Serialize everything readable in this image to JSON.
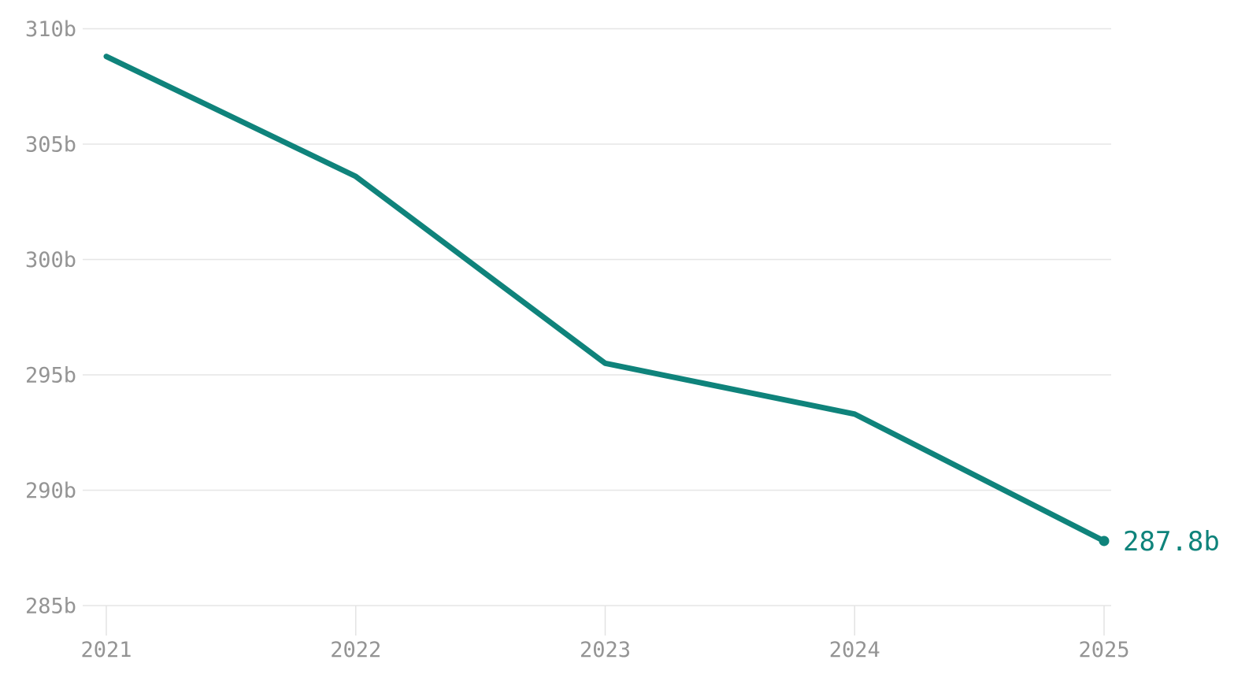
{
  "page": {
    "background": "#ffffff"
  },
  "colors": {
    "line": "#0F837B",
    "end_dot": "#0F837B",
    "end_label": "#0F837B",
    "axis_label": "#949494",
    "gridline": "#E6E6E6",
    "tick": "#E3E3E3"
  },
  "chart_data": {
    "type": "line",
    "title": "",
    "categories": [
      "2021",
      "2022",
      "2023",
      "2024",
      "2025"
    ],
    "series": [
      {
        "name": "value",
        "values": [
          308.8,
          303.6,
          295.5,
          293.3,
          287.8
        ]
      }
    ],
    "end_label": "287.8b",
    "unit_suffix": "b",
    "ylim": [
      285,
      310
    ],
    "yticks": [
      285,
      290,
      295,
      300,
      305,
      310
    ],
    "ytick_labels": [
      "285b",
      "290b",
      "295b",
      "300b",
      "305b",
      "310b"
    ],
    "xtick_labels": [
      "2021",
      "2022",
      "2023",
      "2024",
      "2025"
    ],
    "grid": "horizontal-only",
    "legend": "none"
  }
}
